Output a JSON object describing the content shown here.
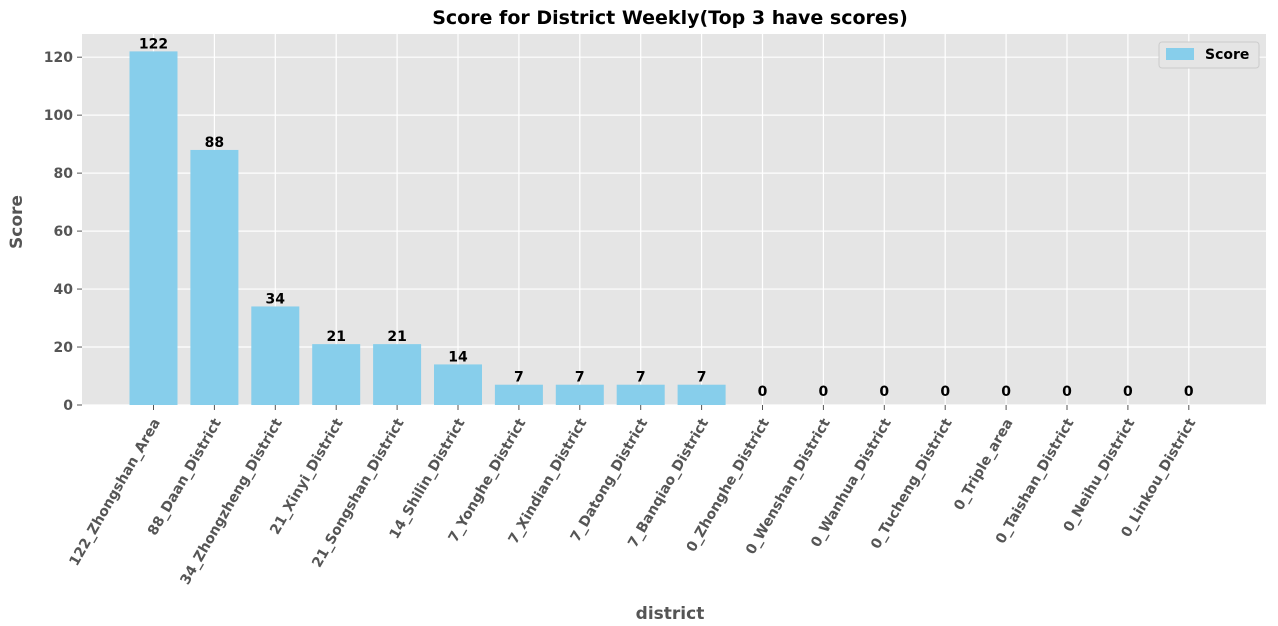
{
  "chart_data": {
    "type": "bar",
    "title": "Score for District Weekly(Top 3 have scores)",
    "xlabel": "district",
    "ylabel": "Score",
    "ylim": [
      0,
      128
    ],
    "yticks": [
      0,
      20,
      40,
      60,
      80,
      100,
      120
    ],
    "grid": true,
    "legend_position": "top-right",
    "categories": [
      "122_Zhongshan_Area",
      "88_Daan_District",
      "34_Zhongzheng_District",
      "21_Xinyi_District",
      "21_Songshan_District",
      "14_Shilin_District",
      "7_Yonghe_District",
      "7_Xindian_District",
      "7_Datong_District",
      "7_Banqiao_District",
      "0_Zhonghe_District",
      "0_Wenshan_District",
      "0_Wanhua_District",
      "0_Tucheng_District",
      "0_Triple_area",
      "0_Taishan_District",
      "0_Neihu_District",
      "0_Linkou_District"
    ],
    "series": [
      {
        "name": "Score",
        "color": "#87ceeb",
        "values": [
          122,
          88,
          34,
          21,
          21,
          14,
          7,
          7,
          7,
          7,
          0,
          0,
          0,
          0,
          0,
          0,
          0,
          0
        ]
      }
    ]
  },
  "colors": {
    "plot_background": "#e5e5e5",
    "grid": "#ffffff",
    "bar": "#87ceeb"
  }
}
